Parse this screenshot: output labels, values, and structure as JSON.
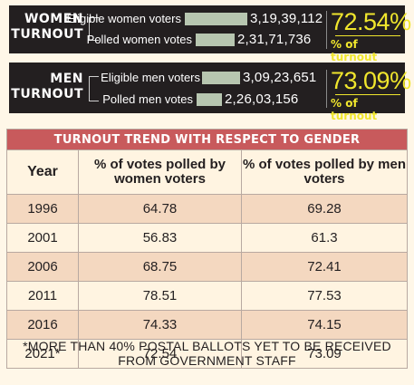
{
  "women_panel": {
    "title_line1": "WOMEN",
    "title_line2": "TURNOUT",
    "eligible_label": "Eligible women voters",
    "eligible_value": "3,19,39,112",
    "polled_label": "Polled women votes",
    "polled_value": "2,31,71,736",
    "turnout_pct": "72.54%",
    "turnout_caption": "% of turnout"
  },
  "men_panel": {
    "title_line1": "MEN",
    "title_line2": "TURNOUT",
    "eligible_label": "Eligible men voters",
    "eligible_value": "3,09,23,651",
    "polled_label": "Polled men votes",
    "polled_value": "2,26,03,156",
    "turnout_pct": "73.09%",
    "turnout_caption": "% of turnout"
  },
  "colors": {
    "panel_bg": "#231f20",
    "accent_yellow": "#f0e62d",
    "bar": "#b7c6b0",
    "table_title_bg": "#c85a5c",
    "row_shade": "#f4d8c0"
  },
  "table": {
    "title": "TURNOUT TREND WITH RESPECT TO GENDER",
    "headers": {
      "year": "Year",
      "women": "% of votes polled by women voters",
      "men": "% of votes polled by men voters"
    },
    "rows": [
      {
        "year": "1996",
        "women": "64.78",
        "men": "69.28"
      },
      {
        "year": "2001",
        "women": "56.83",
        "men": "61.3"
      },
      {
        "year": "2006",
        "women": "68.75",
        "men": "72.41"
      },
      {
        "year": "2011",
        "women": "78.51",
        "men": "77.53"
      },
      {
        "year": "2016",
        "women": "74.33",
        "men": "74.15"
      },
      {
        "year": "2021*",
        "women": "72.54",
        "men": "73.09"
      }
    ]
  },
  "footnote": {
    "line1": "*MORE THAN 40% POSTAL BALLOTS YET TO BE RECEIVED",
    "line2": "FROM GOVERNMENT STAFF"
  }
}
